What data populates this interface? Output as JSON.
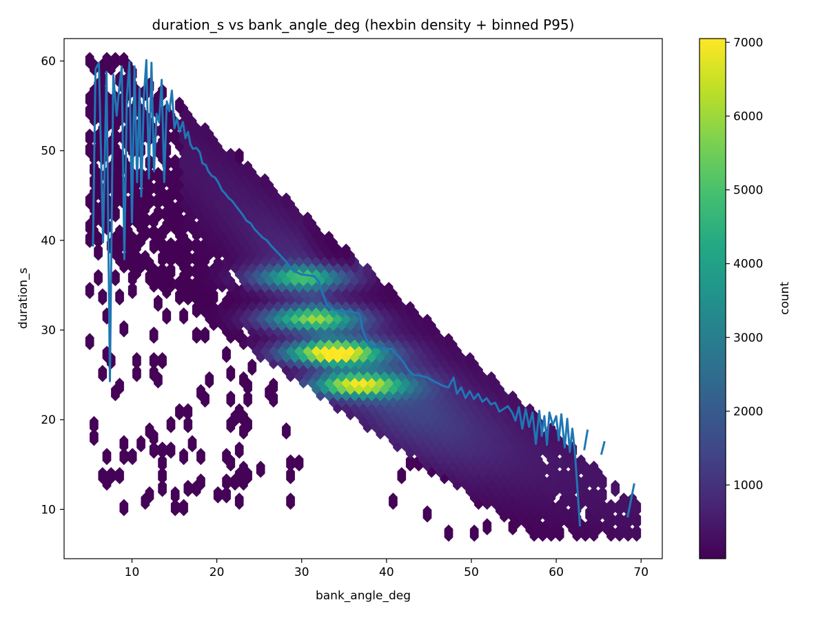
{
  "chart_data": {
    "type": "heatmap",
    "subtype": "hexbin",
    "title": "duration_s vs bank_angle_deg (hexbin density + binned P95)",
    "xlabel": "bank_angle_deg",
    "ylabel": "duration_s",
    "xlim": [
      2.0,
      72.5
    ],
    "ylim": [
      4.5,
      62.5
    ],
    "xticks": [
      10,
      20,
      30,
      40,
      50,
      60,
      70
    ],
    "yticks": [
      10,
      20,
      30,
      40,
      50,
      60
    ],
    "grid": false,
    "colormap": "viridis",
    "colorbar": {
      "label": "count",
      "min": 1,
      "max": 7050,
      "ticks": [
        1000,
        2000,
        3000,
        4000,
        5000,
        6000,
        7000
      ]
    },
    "density_ridge": {
      "description_points": [
        [
          10,
          55
        ],
        [
          20,
          46
        ],
        [
          30,
          36
        ],
        [
          34,
          28
        ],
        [
          40,
          24
        ],
        [
          50,
          19
        ],
        [
          60,
          15
        ],
        [
          68,
          12
        ]
      ],
      "peaks": [
        {
          "x": 33.5,
          "y": 27.8,
          "count": 7000
        },
        {
          "x": 36.5,
          "y": 24.2,
          "count": 5800
        },
        {
          "x": 31.0,
          "y": 31.6,
          "count": 5000
        },
        {
          "x": 30.0,
          "y": 36.2,
          "count": 4200
        }
      ]
    },
    "series": [
      {
        "type": "line",
        "color": "#1f77b4",
        "points": [
          [
            5.4,
            39.3
          ],
          [
            5.7,
            59.1
          ],
          [
            6.1,
            59.8
          ],
          [
            6.6,
            39.8
          ],
          [
            7.0,
            58.8
          ],
          [
            7.4,
            24.3
          ],
          [
            7.8,
            58.5
          ],
          [
            8.2,
            53.9
          ],
          [
            8.5,
            57.0
          ],
          [
            8.8,
            59.4
          ],
          [
            9.1,
            37.9
          ],
          [
            9.4,
            56.0
          ],
          [
            9.7,
            59.9
          ],
          [
            10.0,
            42.0
          ],
          [
            10.3,
            59.4
          ],
          [
            10.6,
            46.5
          ],
          [
            10.9,
            57.0
          ],
          [
            11.1,
            44.9
          ],
          [
            11.4,
            56.0
          ],
          [
            11.7,
            60.1
          ],
          [
            12.0,
            46.9
          ],
          [
            12.3,
            59.8
          ],
          [
            12.6,
            47.7
          ],
          [
            12.9,
            54.1
          ],
          [
            13.2,
            53.2
          ],
          [
            13.5,
            57.9
          ],
          [
            13.8,
            46.5
          ],
          [
            14.1,
            55.5
          ],
          [
            14.4,
            54.4
          ],
          [
            14.7,
            56.7
          ],
          [
            15.0,
            52.5
          ],
          [
            15.3,
            53.6
          ],
          [
            15.6,
            52.1
          ],
          [
            16.0,
            53.2
          ],
          [
            16.3,
            51.4
          ],
          [
            16.6,
            52.1
          ],
          [
            16.9,
            50.7
          ],
          [
            17.2,
            50.2
          ],
          [
            17.6,
            50.3
          ],
          [
            18.0,
            49.8
          ],
          [
            18.3,
            48.6
          ],
          [
            18.7,
            48.4
          ],
          [
            19.0,
            47.7
          ],
          [
            19.4,
            47.2
          ],
          [
            19.8,
            47.0
          ],
          [
            20.2,
            46.4
          ],
          [
            20.6,
            45.6
          ],
          [
            21.0,
            45.2
          ],
          [
            21.4,
            44.7
          ],
          [
            21.8,
            44.4
          ],
          [
            22.2,
            43.9
          ],
          [
            22.6,
            43.4
          ],
          [
            23.0,
            42.9
          ],
          [
            23.5,
            42.2
          ],
          [
            24.0,
            41.9
          ],
          [
            24.4,
            41.3
          ],
          [
            24.9,
            40.8
          ],
          [
            25.4,
            40.3
          ],
          [
            25.9,
            40.0
          ],
          [
            26.4,
            39.4
          ],
          [
            26.9,
            38.9
          ],
          [
            27.5,
            38.3
          ],
          [
            28.0,
            37.8
          ],
          [
            28.5,
            37.2
          ],
          [
            29.0,
            36.7
          ],
          [
            29.5,
            36.4
          ],
          [
            30.0,
            36.2
          ],
          [
            30.8,
            36.1
          ],
          [
            31.5,
            36.0
          ],
          [
            32.0,
            35.4
          ],
          [
            32.5,
            34.0
          ],
          [
            33.0,
            32.8
          ],
          [
            33.5,
            32.4
          ],
          [
            34.0,
            32.2
          ],
          [
            35.0,
            32.1
          ],
          [
            36.0,
            32.0
          ],
          [
            36.8,
            31.8
          ],
          [
            37.2,
            30.0
          ],
          [
            37.6,
            29.0
          ],
          [
            38.0,
            28.4
          ],
          [
            38.6,
            28.1
          ],
          [
            39.2,
            28.0
          ],
          [
            40.0,
            27.9
          ],
          [
            40.6,
            27.9
          ],
          [
            41.0,
            27.4
          ],
          [
            41.5,
            27.0
          ],
          [
            42.0,
            26.4
          ],
          [
            42.6,
            25.5
          ],
          [
            43.2,
            25.0
          ],
          [
            44.0,
            24.9
          ],
          [
            44.8,
            24.7
          ],
          [
            45.4,
            24.4
          ],
          [
            46.0,
            24.1
          ],
          [
            46.6,
            23.8
          ],
          [
            47.3,
            23.6
          ],
          [
            47.9,
            24.7
          ],
          [
            48.3,
            22.9
          ],
          [
            48.8,
            23.6
          ],
          [
            49.3,
            22.4
          ],
          [
            49.8,
            23.2
          ],
          [
            50.3,
            22.3
          ],
          [
            50.8,
            22.9
          ],
          [
            51.3,
            22.0
          ],
          [
            51.8,
            22.4
          ],
          [
            52.3,
            21.7
          ],
          [
            52.8,
            21.9
          ],
          [
            53.3,
            20.9
          ],
          [
            53.8,
            21.2
          ],
          [
            54.3,
            21.5
          ],
          [
            54.8,
            20.8
          ],
          [
            55.2,
            19.9
          ],
          [
            55.6,
            21.4
          ],
          [
            56.0,
            19.0
          ],
          [
            56.4,
            21.2
          ],
          [
            56.8,
            19.2
          ],
          [
            57.2,
            20.8
          ],
          [
            57.6,
            17.3
          ],
          [
            58.0,
            21.0
          ],
          [
            58.3,
            18.2
          ],
          [
            58.6,
            20.4
          ],
          [
            58.9,
            17.2
          ],
          [
            59.2,
            20.8
          ],
          [
            59.6,
            19.4
          ],
          [
            60.0,
            20.4
          ],
          [
            60.3,
            17.7
          ],
          [
            60.6,
            20.6
          ],
          [
            61.0,
            16.9
          ],
          [
            61.3,
            20.1
          ],
          [
            61.6,
            16.4
          ],
          [
            61.9,
            19.0
          ],
          [
            62.2,
            16.4
          ],
          [
            62.8,
            8.1
          ]
        ]
      },
      {
        "type": "line",
        "color": "#1f77b4",
        "points": [
          [
            63.3,
            16.6
          ],
          [
            63.7,
            18.9
          ]
        ]
      },
      {
        "type": "line",
        "color": "#1f77b4",
        "points": [
          [
            65.3,
            16.1
          ],
          [
            65.7,
            17.6
          ]
        ]
      },
      {
        "type": "line",
        "color": "#1f77b4",
        "points": [
          [
            68.4,
            9.1
          ],
          [
            69.2,
            12.9
          ]
        ]
      }
    ]
  }
}
